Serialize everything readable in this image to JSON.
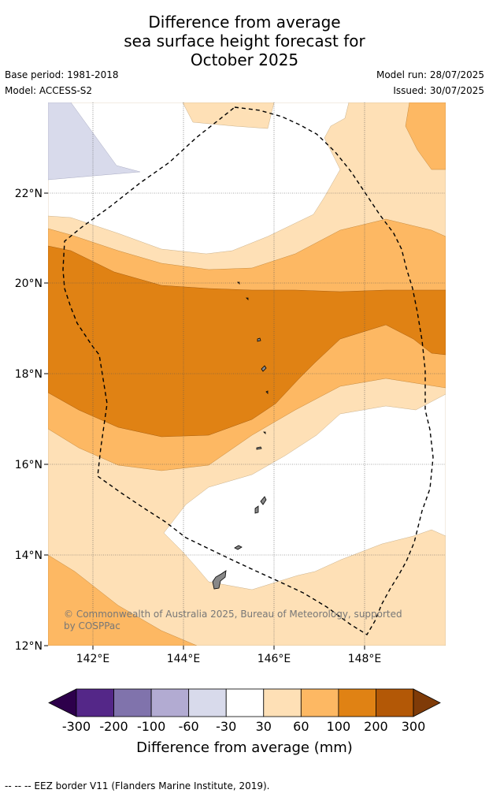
{
  "title": {
    "line1": "Difference from average",
    "line2": "sea surface height forecast for",
    "line3": "October 2025"
  },
  "meta": {
    "base_period": "Base period: 1981-2018",
    "model": "Model: ACCESS-S2",
    "model_run": "Model run: 28/07/2025",
    "issued": "Issued: 30/07/2025"
  },
  "map": {
    "lon_ticks": [
      "142°E",
      "144°E",
      "146°E",
      "148°E"
    ],
    "lat_ticks": [
      "22°N",
      "20°N",
      "18°N",
      "16°N",
      "14°N",
      "12°N"
    ],
    "lon_range": [
      141,
      149.8
    ],
    "lat_range": [
      12,
      24
    ],
    "copyright": "© Commonwealth of Australia 2025, Bureau of Meteorology, supported by COSPPac"
  },
  "colorbar": {
    "labels": [
      "-300",
      "-200",
      "-100",
      "-60",
      "-30",
      "30",
      "60",
      "100",
      "200",
      "300"
    ],
    "colors": [
      "#2d004b",
      "#542788",
      "#8073ac",
      "#b2abd2",
      "#d8daeb",
      "#ffffff",
      "#fee0b6",
      "#fdb863",
      "#e08214",
      "#b35806",
      "#7f3b08"
    ],
    "title": "Difference from average (mm)"
  },
  "footer": "-- -- -- EEZ border V11 (Flanders Marine Institute, 2019)."
}
